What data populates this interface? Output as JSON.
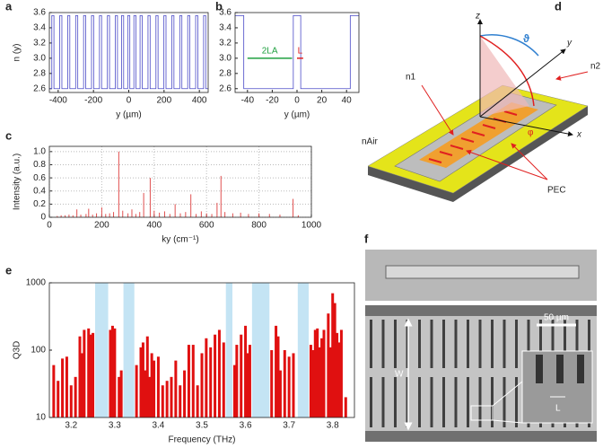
{
  "chart_data": [
    {
      "type": "line",
      "label": "a",
      "x_label": "y (µm)",
      "y_label": "n (y)",
      "color": "#4a4ac8",
      "xlim": [
        -450,
        450
      ],
      "xticks": [
        -400,
        -200,
        0,
        200,
        400
      ],
      "ylim": [
        2.55,
        3.6
      ],
      "yticks": [
        2.6,
        2.8,
        {
          "value": 3,
          "label": "3.0"
        },
        3.2,
        3.4,
        3.6
      ],
      "x": [
        -450,
        -436,
        -436,
        -424,
        -424,
        -391,
        -391,
        -379,
        -379,
        -346,
        -346,
        -334,
        -334,
        -301,
        -301,
        -289,
        -289,
        -256,
        -256,
        -244,
        -244,
        -211,
        -211,
        -199,
        -199,
        -166,
        -166,
        -154,
        -154,
        -121,
        -121,
        -109,
        -109,
        -76,
        -76,
        -64,
        -64,
        -41,
        -41,
        -29,
        -29,
        -6,
        -6,
        6,
        6,
        29,
        29,
        41,
        41,
        64,
        64,
        76,
        76,
        109,
        109,
        121,
        121,
        154,
        154,
        166,
        166,
        199,
        199,
        211,
        211,
        244,
        244,
        256,
        256,
        289,
        289,
        301,
        301,
        334,
        334,
        346,
        346,
        379,
        379,
        391,
        391,
        424,
        424,
        436,
        436,
        450
      ],
      "values": [
        2.6,
        2.6,
        3.56,
        3.56,
        2.6,
        2.6,
        3.56,
        3.56,
        2.6,
        2.6,
        3.56,
        3.56,
        2.6,
        2.6,
        3.56,
        3.56,
        2.6,
        2.6,
        3.56,
        3.56,
        2.6,
        2.6,
        3.56,
        3.56,
        2.6,
        2.6,
        3.56,
        3.56,
        2.6,
        2.6,
        3.56,
        3.56,
        2.6,
        2.6,
        3.56,
        3.56,
        2.6,
        2.6,
        3.56,
        3.56,
        2.6,
        2.6,
        3.56,
        3.56,
        2.6,
        2.6,
        3.56,
        3.56,
        2.6,
        2.6,
        3.56,
        3.56,
        2.6,
        2.6,
        3.56,
        3.56,
        2.6,
        2.6,
        3.56,
        3.56,
        2.6,
        2.6,
        3.56,
        3.56,
        2.6,
        2.6,
        3.56,
        3.56,
        2.6,
        2.6,
        3.56,
        3.56,
        2.6,
        2.6,
        3.56,
        3.56,
        2.6,
        2.6,
        3.56,
        3.56,
        2.6,
        2.6,
        3.56,
        3.56,
        2.6,
        2.6
      ]
    },
    {
      "type": "line",
      "label": "b",
      "x_label": "y (µm)",
      "color": "#4a4ac8",
      "xlim": [
        -50,
        50
      ],
      "xticks": [
        -40,
        -20,
        0,
        20,
        40
      ],
      "ylim": [
        2.55,
        3.6
      ],
      "yticks": [
        2.6,
        2.8,
        {
          "value": 3,
          "label": "3.0"
        },
        3.2,
        3.4,
        3.6
      ],
      "x": [
        -50,
        -43,
        -43,
        -3,
        -3,
        3,
        3,
        43,
        43,
        50
      ],
      "values": [
        3.56,
        3.56,
        2.6,
        2.6,
        3.56,
        3.56,
        2.6,
        2.6,
        3.56,
        3.56
      ],
      "annotations": [
        "2LA",
        "L"
      ]
    },
    {
      "type": "stem",
      "label": "c",
      "x_label": "ky (cm⁻¹)",
      "y_label": "Intensity (a.u.)",
      "color": "#e05050",
      "grid": true,
      "xlim": [
        0,
        1000
      ],
      "xticks": [
        0,
        200,
        400,
        600,
        800,
        1000
      ],
      "ylim": [
        0,
        1.08
      ],
      "yticks": [
        0,
        0.2,
        0.4,
        0.6,
        0.8,
        {
          "value": 1,
          "label": "1.0"
        }
      ],
      "x": [
        30,
        45,
        60,
        75,
        90,
        105,
        120,
        140,
        150,
        165,
        180,
        200,
        215,
        230,
        245,
        265,
        280,
        300,
        315,
        330,
        345,
        360,
        385,
        400,
        420,
        440,
        460,
        480,
        500,
        520,
        540,
        560,
        580,
        600,
        620,
        640,
        655,
        670,
        700,
        730,
        760,
        800,
        840,
        880,
        930,
        950
      ],
      "values": [
        0.02,
        0.03,
        0.03,
        0.04,
        0.03,
        0.12,
        0.04,
        0.05,
        0.13,
        0.04,
        0.06,
        0.15,
        0.05,
        0.06,
        0.08,
        1.0,
        0.1,
        0.06,
        0.12,
        0.05,
        0.08,
        0.37,
        0.6,
        0.1,
        0.07,
        0.09,
        0.05,
        0.2,
        0.06,
        0.08,
        0.35,
        0.05,
        0.09,
        0.06,
        0.05,
        0.22,
        0.63,
        0.08,
        0.06,
        0.07,
        0.05,
        0.06,
        0.05,
        0.04,
        0.28,
        0.03
      ]
    },
    {
      "type": "bar",
      "label": "e",
      "x_label": "Frequency (THz)",
      "y_label": "Q3D",
      "color": "#e01010",
      "log": true,
      "band_color": "#c4e4f4",
      "xlim": [
        3.15,
        3.85
      ],
      "xticks": [
        3.2,
        3.3,
        3.4,
        3.5,
        3.6,
        3.7,
        3.8
      ],
      "ylim": [
        10,
        1000
      ],
      "yticks": [
        10,
        100,
        1000
      ],
      "bands": [
        [
          3.255,
          3.285
        ],
        [
          3.32,
          3.345
        ],
        [
          3.555,
          3.57
        ],
        [
          3.615,
          3.655
        ],
        [
          3.72,
          3.745
        ]
      ],
      "x": [
        3.16,
        3.17,
        3.18,
        3.19,
        3.2,
        3.21,
        3.22,
        3.225,
        3.23,
        3.24,
        3.245,
        3.25,
        3.29,
        3.295,
        3.3,
        3.31,
        3.315,
        3.35,
        3.36,
        3.365,
        3.37,
        3.375,
        3.38,
        3.385,
        3.39,
        3.4,
        3.41,
        3.42,
        3.43,
        3.44,
        3.45,
        3.46,
        3.47,
        3.48,
        3.49,
        3.5,
        3.51,
        3.52,
        3.53,
        3.54,
        3.55,
        3.575,
        3.58,
        3.59,
        3.6,
        3.605,
        3.61,
        3.66,
        3.67,
        3.675,
        3.68,
        3.69,
        3.7,
        3.71,
        3.75,
        3.755,
        3.76,
        3.765,
        3.77,
        3.775,
        3.78,
        3.79,
        3.795,
        3.8,
        3.805,
        3.81,
        3.815,
        3.82,
        3.83
      ],
      "values": [
        60,
        35,
        75,
        80,
        30,
        40,
        160,
        90,
        200,
        210,
        170,
        180,
        200,
        230,
        210,
        40,
        50,
        60,
        110,
        130,
        50,
        160,
        40,
        90,
        70,
        80,
        30,
        35,
        40,
        70,
        30,
        50,
        120,
        120,
        30,
        90,
        150,
        110,
        170,
        200,
        130,
        60,
        120,
        170,
        230,
        90,
        120,
        100,
        230,
        160,
        50,
        100,
        80,
        90,
        120,
        100,
        200,
        210,
        110,
        150,
        200,
        350,
        110,
        700,
        500,
        180,
        130,
        200,
        20
      ]
    }
  ],
  "diagram": {
    "label": "d",
    "z": "z",
    "y": "y",
    "x": "x",
    "theta": "ϑ",
    "phi": "φ",
    "n1": "n1",
    "n2": "n2",
    "nair": "nAir",
    "pec": "PEC"
  },
  "image": {
    "label": "f",
    "scale_bar": "50 µm",
    "width": "W",
    "length": "L"
  }
}
